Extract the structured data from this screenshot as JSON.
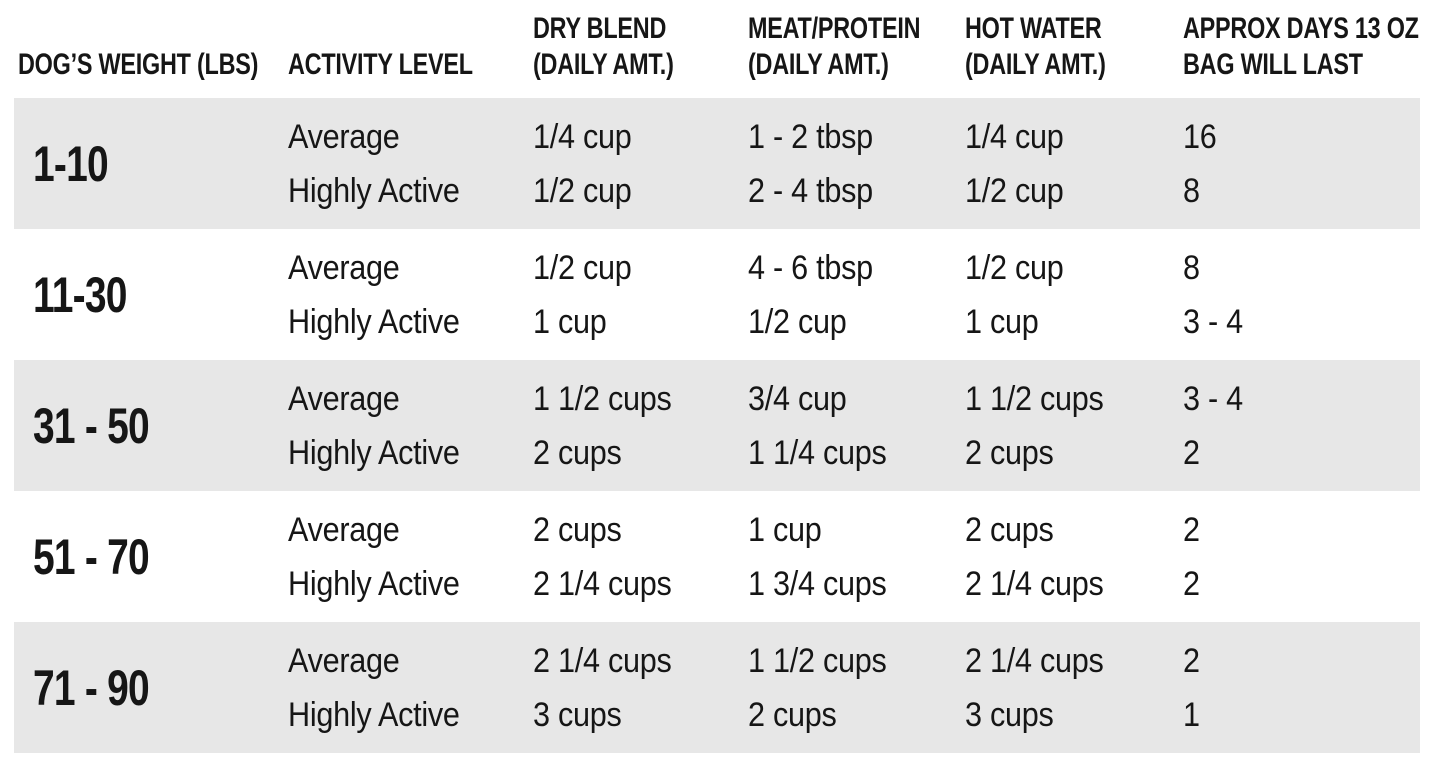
{
  "colors": {
    "band": "#e7e7e7",
    "text": "#161616",
    "background": "#ffffff"
  },
  "table": {
    "columns": [
      {
        "line1": "",
        "line2": "DOG’S WEIGHT (LBS)"
      },
      {
        "line1": "",
        "line2": "ACTIVITY LEVEL"
      },
      {
        "line1": "DRY BLEND",
        "line2": "(DAILY AMT.)"
      },
      {
        "line1": "MEAT/PROTEIN",
        "line2": "(DAILY AMT.)"
      },
      {
        "line1": "HOT WATER",
        "line2": "(DAILY AMT.)"
      },
      {
        "line1": "APPROX DAYS 13 OZ",
        "line2": "BAG WILL LAST"
      }
    ],
    "rows": [
      {
        "weight": "1-10",
        "shaded": true,
        "entries": [
          {
            "activity": "Average",
            "dry_blend": "1/4 cup",
            "meat_protein": "1 - 2 tbsp",
            "hot_water": "1/4 cup",
            "days": "16"
          },
          {
            "activity": "Highly Active",
            "dry_blend": "1/2 cup",
            "meat_protein": "2 - 4 tbsp",
            "hot_water": "1/2 cup",
            "days": "8"
          }
        ]
      },
      {
        "weight": "11-30",
        "shaded": false,
        "entries": [
          {
            "activity": "Average",
            "dry_blend": "1/2 cup",
            "meat_protein": "4 - 6 tbsp",
            "hot_water": "1/2 cup",
            "days": "8"
          },
          {
            "activity": "Highly Active",
            "dry_blend": "1 cup",
            "meat_protein": "1/2 cup",
            "hot_water": "1 cup",
            "days": "3 - 4"
          }
        ]
      },
      {
        "weight": "31 - 50",
        "shaded": true,
        "entries": [
          {
            "activity": "Average",
            "dry_blend": "1 1/2 cups",
            "meat_protein": "3/4 cup",
            "hot_water": "1 1/2 cups",
            "days": "3 - 4"
          },
          {
            "activity": "Highly Active",
            "dry_blend": "2 cups",
            "meat_protein": "1 1/4 cups",
            "hot_water": "2 cups",
            "days": "2"
          }
        ]
      },
      {
        "weight": "51 - 70",
        "shaded": false,
        "entries": [
          {
            "activity": "Average",
            "dry_blend": "2 cups",
            "meat_protein": "1 cup",
            "hot_water": "2 cups",
            "days": "2"
          },
          {
            "activity": "Highly Active",
            "dry_blend": "2 1/4 cups",
            "meat_protein": "1 3/4 cups",
            "hot_water": "2 1/4 cups",
            "days": "2"
          }
        ]
      },
      {
        "weight": "71 - 90",
        "shaded": true,
        "entries": [
          {
            "activity": "Average",
            "dry_blend": "2 1/4 cups",
            "meat_protein": "1 1/2 cups",
            "hot_water": "2 1/4 cups",
            "days": "2"
          },
          {
            "activity": "Highly Active",
            "dry_blend": "3 cups",
            "meat_protein": "2 cups",
            "hot_water": "3 cups",
            "days": "1"
          }
        ]
      }
    ]
  }
}
